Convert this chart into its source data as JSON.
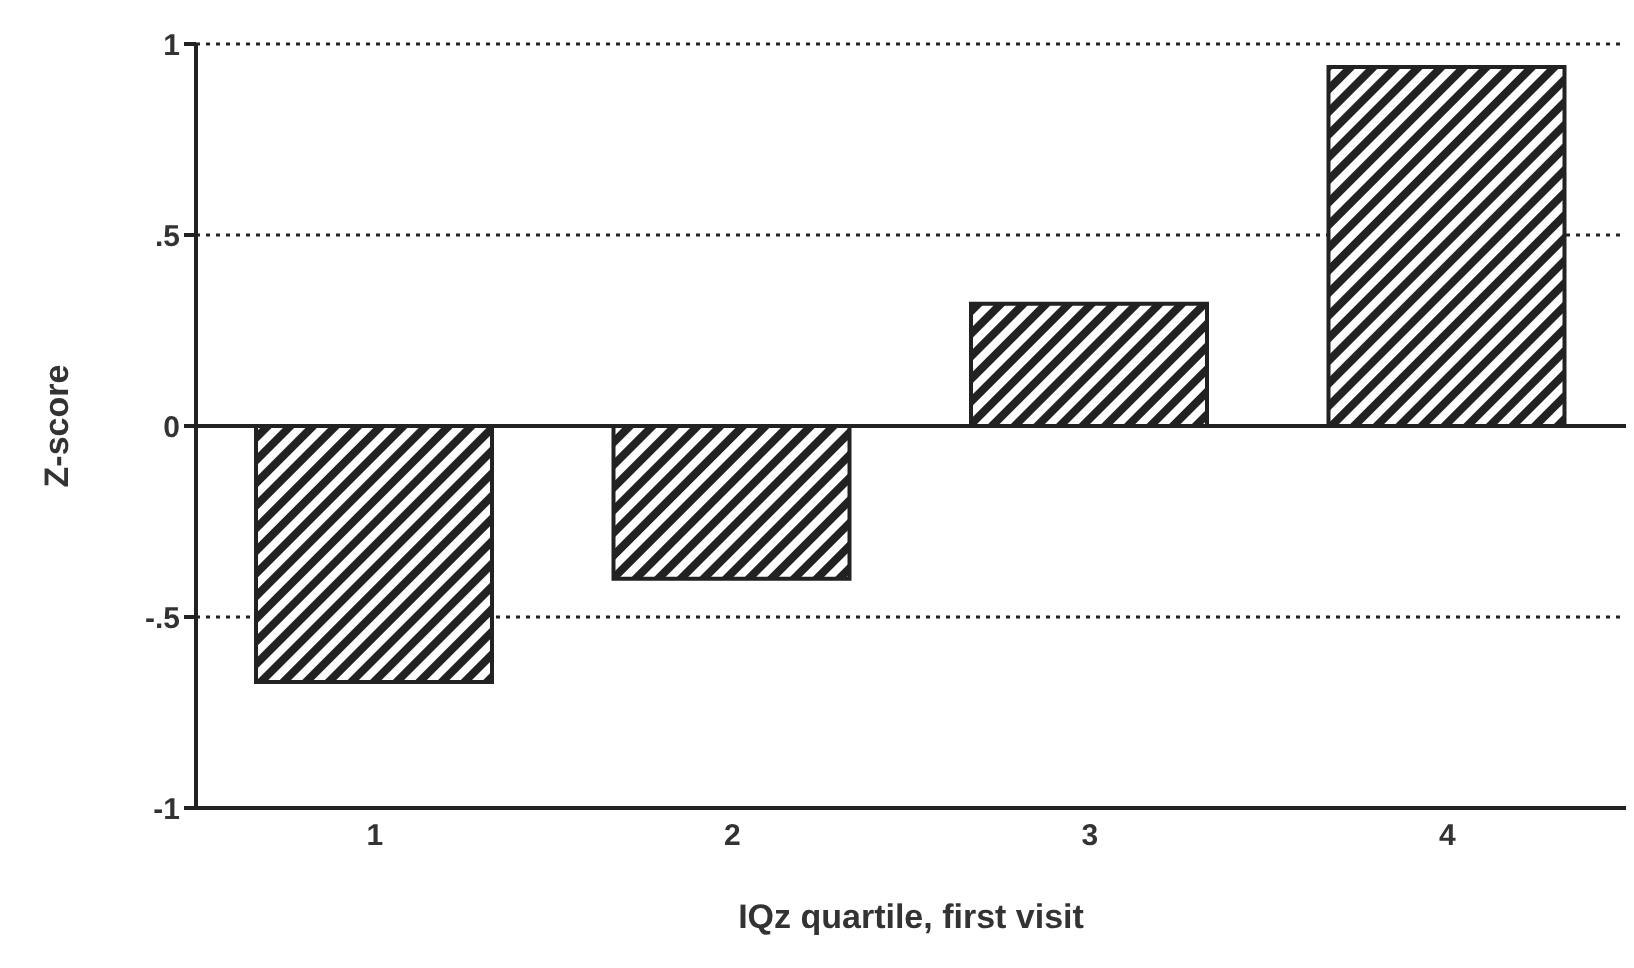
{
  "chart_data": {
    "type": "bar",
    "xlabel": "IQz quartile, first visit",
    "ylabel": "Z-score",
    "categories": [
      "1",
      "2",
      "3",
      "4"
    ],
    "values": [
      -0.67,
      -0.4,
      0.32,
      0.94
    ],
    "color": "#222222",
    "ylim": [
      -1,
      1
    ],
    "yticks": [
      {
        "value": -1,
        "label": "-1"
      },
      {
        "value": -0.5,
        "label": "-.5"
      },
      {
        "value": 0,
        "label": "0"
      },
      {
        "value": 0.5,
        "label": ".5"
      },
      {
        "value": 1,
        "label": "1"
      }
    ],
    "grid": "y",
    "ref_lines": [
      {
        "axis": "y",
        "value": 0,
        "line_style": "solid",
        "color": "#222222"
      }
    ]
  }
}
